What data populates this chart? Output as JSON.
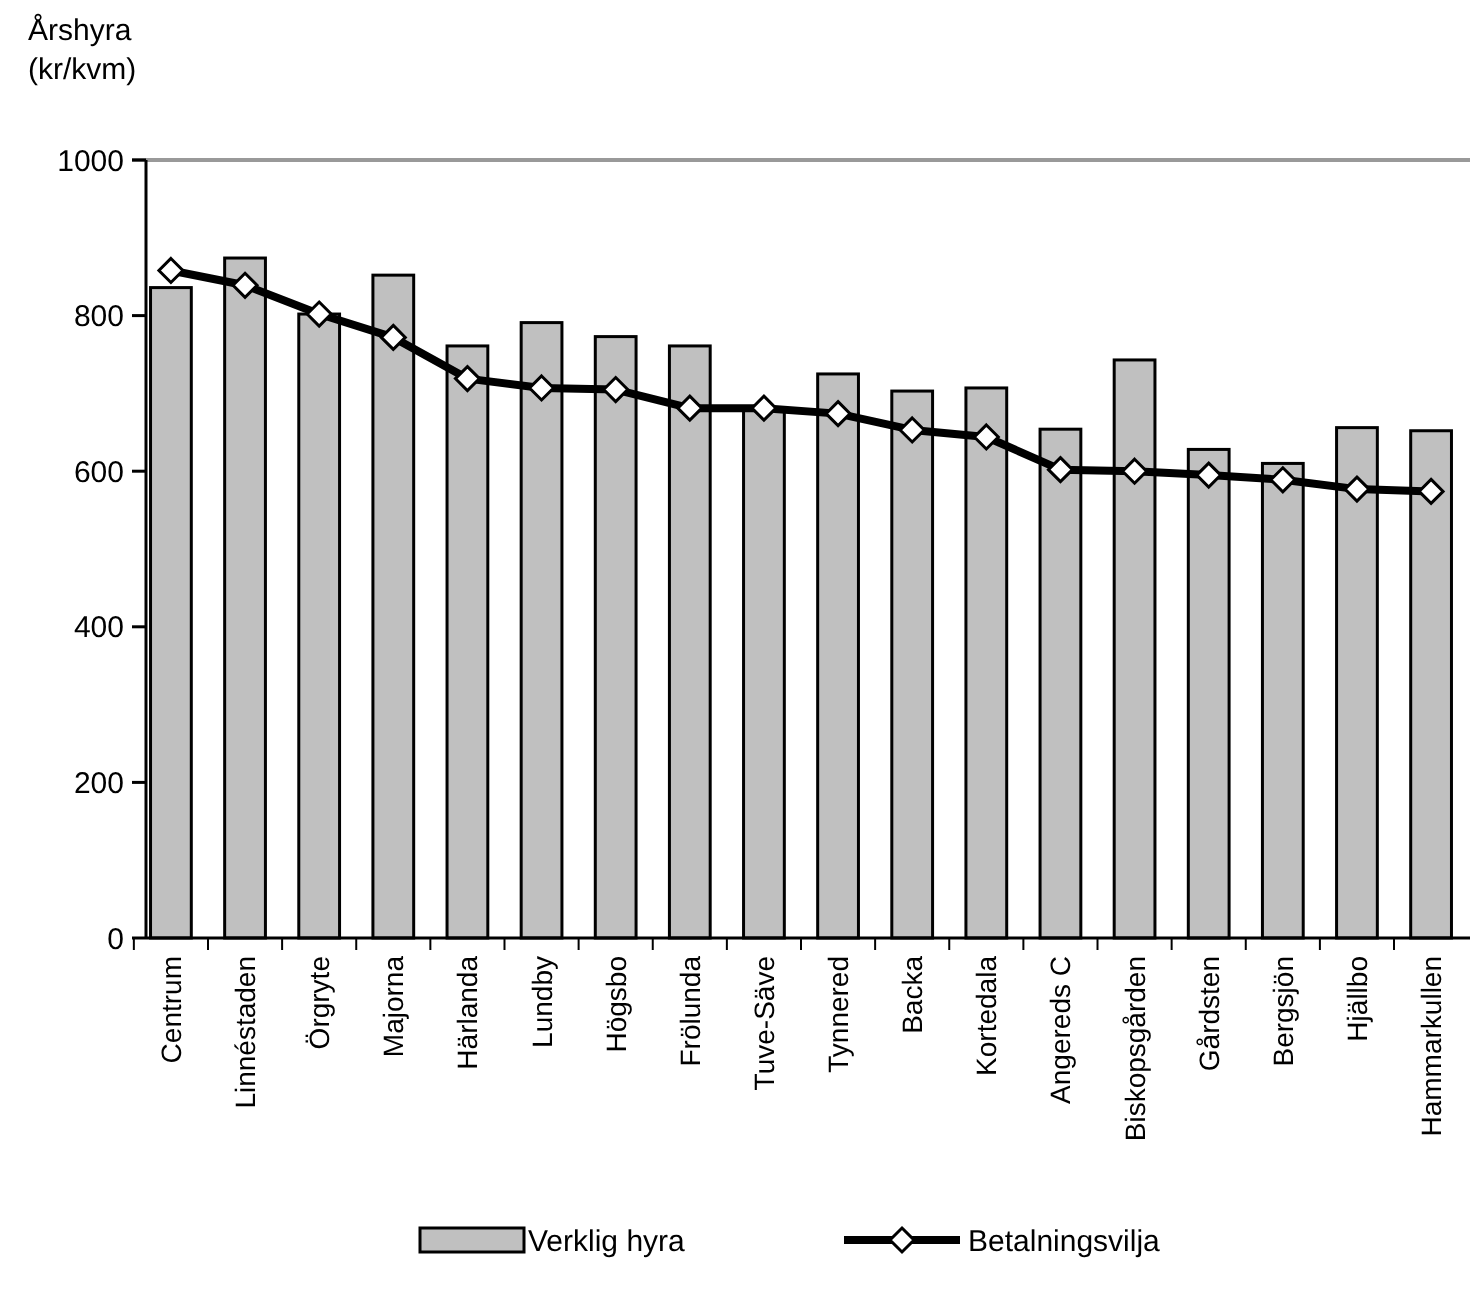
{
  "chart_data": {
    "type": "bar",
    "ylabel": "Årshyra (kr/kvm)",
    "categories": [
      "Centrum",
      "Linnéstaden",
      "Örgryte",
      "Majorna",
      "Härlanda",
      "Lundby",
      "Högsbo",
      "Frölunda",
      "Tuve-Säve",
      "Tynnered",
      "Backa",
      "Kortedala",
      "Angereds C",
      "Biskopsgården",
      "Gårdsten",
      "Bergsjön",
      "Hjällbo",
      "Hammarkullen"
    ],
    "series": [
      {
        "name": "Verklig hyra",
        "color": "#c0c0c0",
        "values": [
          836,
          874,
          802,
          852,
          761,
          791,
          773,
          761,
          680,
          725,
          703,
          707,
          654,
          743,
          628,
          610,
          656,
          652
        ]
      },
      {
        "name": "Betalningsvilja",
        "type": "line",
        "color": "#000000",
        "marker": "diamond",
        "values": [
          858,
          839,
          802,
          772,
          719,
          707,
          705,
          681,
          681,
          674,
          653,
          644,
          602,
          600,
          595,
          589,
          577,
          574
        ]
      }
    ],
    "ylim": [
      0,
      1000
    ],
    "yticks": [
      0,
      200,
      400,
      600,
      800,
      1000
    ],
    "grid": false,
    "legend": "bottom"
  }
}
